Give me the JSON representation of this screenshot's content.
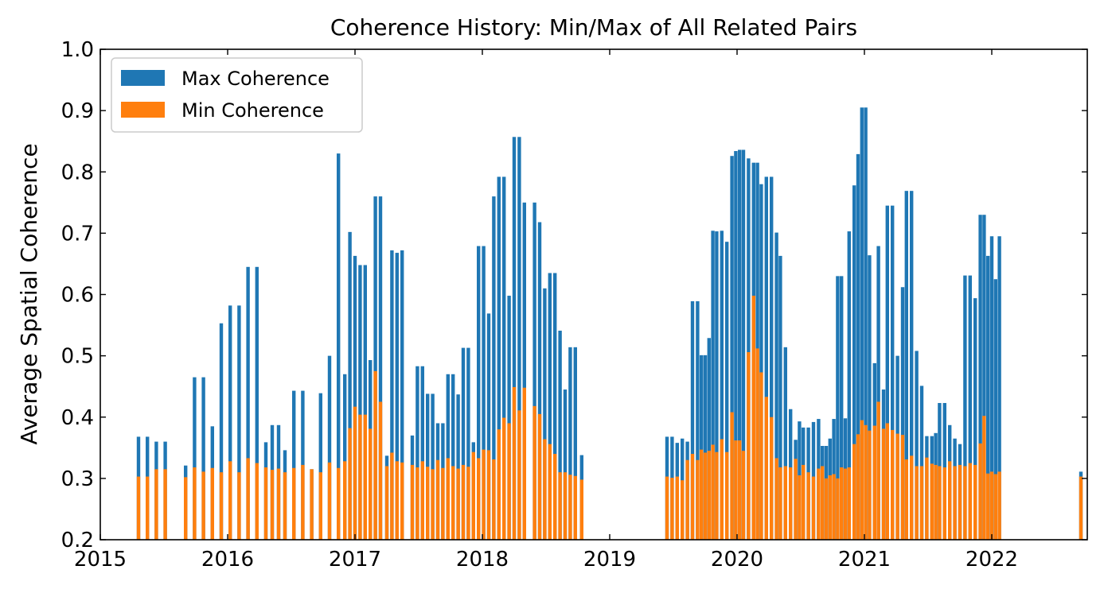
{
  "chart_data": {
    "type": "bar",
    "title": "Coherence History: Min/Max of All Related Pairs",
    "xlabel": "",
    "ylabel": "Average Spatial Coherence",
    "ylim": [
      0.2,
      1.0
    ],
    "xlim": [
      2015.0,
      2022.75
    ],
    "yticks": [
      "0.2",
      "0.3",
      "0.4",
      "0.5",
      "0.6",
      "0.7",
      "0.8",
      "0.9",
      "1.0"
    ],
    "xticks": [
      "2015",
      "2016",
      "2017",
      "2018",
      "2019",
      "2020",
      "2021",
      "2022"
    ],
    "legend_position": "upper-left",
    "legend": [
      {
        "name": "Max Coherence",
        "color": "#1f77b4"
      },
      {
        "name": "Min Coherence",
        "color": "#ff7f0e"
      }
    ],
    "series": [
      {
        "name": "Max Coherence",
        "color": "#1f77b4",
        "points": [
          [
            2015.3,
            0.368
          ],
          [
            2015.37,
            0.368
          ],
          [
            2015.44,
            0.36
          ],
          [
            2015.51,
            0.36
          ],
          [
            2015.67,
            0.321
          ],
          [
            2015.74,
            0.465
          ],
          [
            2015.81,
            0.465
          ],
          [
            2015.88,
            0.385
          ],
          [
            2015.95,
            0.553
          ],
          [
            2016.02,
            0.582
          ],
          [
            2016.09,
            0.582
          ],
          [
            2016.16,
            0.645
          ],
          [
            2016.23,
            0.645
          ],
          [
            2016.3,
            0.359
          ],
          [
            2016.35,
            0.387
          ],
          [
            2016.4,
            0.387
          ],
          [
            2016.45,
            0.346
          ],
          [
            2016.52,
            0.443
          ],
          [
            2016.59,
            0.443
          ],
          [
            2016.66,
            0.315
          ],
          [
            2016.73,
            0.439
          ],
          [
            2016.8,
            0.5
          ],
          [
            2016.87,
            0.83
          ],
          [
            2016.92,
            0.47
          ],
          [
            2016.96,
            0.702
          ],
          [
            2017.0,
            0.663
          ],
          [
            2017.04,
            0.648
          ],
          [
            2017.08,
            0.648
          ],
          [
            2017.12,
            0.493
          ],
          [
            2017.16,
            0.76
          ],
          [
            2017.2,
            0.76
          ],
          [
            2017.25,
            0.337
          ],
          [
            2017.29,
            0.672
          ],
          [
            2017.33,
            0.668
          ],
          [
            2017.37,
            0.672
          ],
          [
            2017.45,
            0.37
          ],
          [
            2017.49,
            0.483
          ],
          [
            2017.53,
            0.483
          ],
          [
            2017.57,
            0.438
          ],
          [
            2017.61,
            0.438
          ],
          [
            2017.65,
            0.39
          ],
          [
            2017.69,
            0.39
          ],
          [
            2017.73,
            0.47
          ],
          [
            2017.77,
            0.47
          ],
          [
            2017.81,
            0.437
          ],
          [
            2017.85,
            0.513
          ],
          [
            2017.89,
            0.513
          ],
          [
            2017.93,
            0.359
          ],
          [
            2017.97,
            0.679
          ],
          [
            2018.01,
            0.679
          ],
          [
            2018.05,
            0.569
          ],
          [
            2018.09,
            0.76
          ],
          [
            2018.13,
            0.792
          ],
          [
            2018.17,
            0.792
          ],
          [
            2018.21,
            0.598
          ],
          [
            2018.25,
            0.857
          ],
          [
            2018.29,
            0.857
          ],
          [
            2018.33,
            0.75
          ],
          [
            2018.41,
            0.75
          ],
          [
            2018.45,
            0.718
          ],
          [
            2018.49,
            0.61
          ],
          [
            2018.53,
            0.635
          ],
          [
            2018.57,
            0.635
          ],
          [
            2018.61,
            0.541
          ],
          [
            2018.65,
            0.445
          ],
          [
            2018.69,
            0.514
          ],
          [
            2018.73,
            0.514
          ],
          [
            2018.78,
            0.338
          ],
          [
            2019.45,
            0.368
          ],
          [
            2019.49,
            0.368
          ],
          [
            2019.53,
            0.358
          ],
          [
            2019.57,
            0.365
          ],
          [
            2019.61,
            0.36
          ],
          [
            2019.65,
            0.589
          ],
          [
            2019.69,
            0.589
          ],
          [
            2019.72,
            0.501
          ],
          [
            2019.75,
            0.501
          ],
          [
            2019.78,
            0.529
          ],
          [
            2019.81,
            0.704
          ],
          [
            2019.84,
            0.703
          ],
          [
            2019.88,
            0.704
          ],
          [
            2019.92,
            0.686
          ],
          [
            2019.96,
            0.826
          ],
          [
            2019.99,
            0.834
          ],
          [
            2020.02,
            0.836
          ],
          [
            2020.05,
            0.836
          ],
          [
            2020.09,
            0.822
          ],
          [
            2020.13,
            0.815
          ],
          [
            2020.16,
            0.815
          ],
          [
            2020.19,
            0.78
          ],
          [
            2020.23,
            0.792
          ],
          [
            2020.27,
            0.792
          ],
          [
            2020.31,
            0.701
          ],
          [
            2020.34,
            0.663
          ],
          [
            2020.38,
            0.514
          ],
          [
            2020.42,
            0.413
          ],
          [
            2020.46,
            0.363
          ],
          [
            2020.49,
            0.393
          ],
          [
            2020.52,
            0.383
          ],
          [
            2020.56,
            0.383
          ],
          [
            2020.6,
            0.392
          ],
          [
            2020.64,
            0.397
          ],
          [
            2020.67,
            0.353
          ],
          [
            2020.7,
            0.353
          ],
          [
            2020.73,
            0.365
          ],
          [
            2020.76,
            0.397
          ],
          [
            2020.79,
            0.63
          ],
          [
            2020.82,
            0.63
          ],
          [
            2020.85,
            0.398
          ],
          [
            2020.88,
            0.703
          ],
          [
            2020.92,
            0.778
          ],
          [
            2020.95,
            0.829
          ],
          [
            2020.98,
            0.905
          ],
          [
            2021.01,
            0.905
          ],
          [
            2021.04,
            0.664
          ],
          [
            2021.08,
            0.488
          ],
          [
            2021.11,
            0.679
          ],
          [
            2021.15,
            0.445
          ],
          [
            2021.18,
            0.745
          ],
          [
            2021.22,
            0.745
          ],
          [
            2021.26,
            0.5
          ],
          [
            2021.3,
            0.612
          ],
          [
            2021.33,
            0.769
          ],
          [
            2021.37,
            0.769
          ],
          [
            2021.41,
            0.508
          ],
          [
            2021.45,
            0.451
          ],
          [
            2021.49,
            0.369
          ],
          [
            2021.53,
            0.369
          ],
          [
            2021.56,
            0.374
          ],
          [
            2021.59,
            0.423
          ],
          [
            2021.63,
            0.423
          ],
          [
            2021.67,
            0.387
          ],
          [
            2021.71,
            0.365
          ],
          [
            2021.75,
            0.356
          ],
          [
            2021.79,
            0.631
          ],
          [
            2021.83,
            0.631
          ],
          [
            2021.87,
            0.594
          ],
          [
            2021.91,
            0.73
          ],
          [
            2021.94,
            0.73
          ],
          [
            2021.97,
            0.663
          ],
          [
            2022.0,
            0.695
          ],
          [
            2022.03,
            0.625
          ],
          [
            2022.06,
            0.695
          ],
          [
            2022.7,
            0.311
          ]
        ]
      },
      {
        "name": "Min Coherence",
        "color": "#ff7f0e",
        "points": [
          [
            2015.3,
            0.303
          ],
          [
            2015.37,
            0.303
          ],
          [
            2015.44,
            0.315
          ],
          [
            2015.51,
            0.315
          ],
          [
            2015.67,
            0.302
          ],
          [
            2015.74,
            0.318
          ],
          [
            2015.81,
            0.311
          ],
          [
            2015.88,
            0.317
          ],
          [
            2015.95,
            0.31
          ],
          [
            2016.02,
            0.328
          ],
          [
            2016.09,
            0.31
          ],
          [
            2016.16,
            0.333
          ],
          [
            2016.23,
            0.325
          ],
          [
            2016.3,
            0.318
          ],
          [
            2016.35,
            0.314
          ],
          [
            2016.4,
            0.316
          ],
          [
            2016.45,
            0.31
          ],
          [
            2016.52,
            0.317
          ],
          [
            2016.59,
            0.322
          ],
          [
            2016.66,
            0.315
          ],
          [
            2016.73,
            0.31
          ],
          [
            2016.8,
            0.326
          ],
          [
            2016.87,
            0.317
          ],
          [
            2016.92,
            0.328
          ],
          [
            2016.96,
            0.382
          ],
          [
            2017.0,
            0.417
          ],
          [
            2017.04,
            0.404
          ],
          [
            2017.08,
            0.404
          ],
          [
            2017.12,
            0.381
          ],
          [
            2017.16,
            0.475
          ],
          [
            2017.2,
            0.425
          ],
          [
            2017.25,
            0.32
          ],
          [
            2017.29,
            0.342
          ],
          [
            2017.33,
            0.328
          ],
          [
            2017.37,
            0.326
          ],
          [
            2017.45,
            0.322
          ],
          [
            2017.49,
            0.318
          ],
          [
            2017.53,
            0.328
          ],
          [
            2017.57,
            0.319
          ],
          [
            2017.61,
            0.315
          ],
          [
            2017.65,
            0.33
          ],
          [
            2017.69,
            0.317
          ],
          [
            2017.73,
            0.333
          ],
          [
            2017.77,
            0.32
          ],
          [
            2017.81,
            0.316
          ],
          [
            2017.85,
            0.322
          ],
          [
            2017.89,
            0.319
          ],
          [
            2017.93,
            0.343
          ],
          [
            2017.97,
            0.333
          ],
          [
            2018.01,
            0.347
          ],
          [
            2018.05,
            0.346
          ],
          [
            2018.09,
            0.331
          ],
          [
            2018.13,
            0.38
          ],
          [
            2018.17,
            0.399
          ],
          [
            2018.21,
            0.39
          ],
          [
            2018.25,
            0.449
          ],
          [
            2018.29,
            0.411
          ],
          [
            2018.33,
            0.448
          ],
          [
            2018.41,
            0.418
          ],
          [
            2018.45,
            0.405
          ],
          [
            2018.49,
            0.364
          ],
          [
            2018.53,
            0.356
          ],
          [
            2018.57,
            0.34
          ],
          [
            2018.61,
            0.31
          ],
          [
            2018.65,
            0.31
          ],
          [
            2018.69,
            0.306
          ],
          [
            2018.73,
            0.304
          ],
          [
            2018.78,
            0.298
          ],
          [
            2019.45,
            0.303
          ],
          [
            2019.49,
            0.301
          ],
          [
            2019.53,
            0.303
          ],
          [
            2019.57,
            0.297
          ],
          [
            2019.61,
            0.33
          ],
          [
            2019.65,
            0.34
          ],
          [
            2019.69,
            0.33
          ],
          [
            2019.72,
            0.347
          ],
          [
            2019.75,
            0.342
          ],
          [
            2019.78,
            0.345
          ],
          [
            2019.81,
            0.355
          ],
          [
            2019.84,
            0.343
          ],
          [
            2019.88,
            0.364
          ],
          [
            2019.92,
            0.343
          ],
          [
            2019.96,
            0.408
          ],
          [
            2019.99,
            0.362
          ],
          [
            2020.02,
            0.362
          ],
          [
            2020.05,
            0.345
          ],
          [
            2020.09,
            0.506
          ],
          [
            2020.13,
            0.598
          ],
          [
            2020.16,
            0.512
          ],
          [
            2020.19,
            0.473
          ],
          [
            2020.23,
            0.433
          ],
          [
            2020.27,
            0.4
          ],
          [
            2020.31,
            0.333
          ],
          [
            2020.34,
            0.318
          ],
          [
            2020.38,
            0.32
          ],
          [
            2020.42,
            0.318
          ],
          [
            2020.46,
            0.332
          ],
          [
            2020.49,
            0.305
          ],
          [
            2020.52,
            0.322
          ],
          [
            2020.56,
            0.31
          ],
          [
            2020.6,
            0.303
          ],
          [
            2020.64,
            0.316
          ],
          [
            2020.67,
            0.32
          ],
          [
            2020.7,
            0.3
          ],
          [
            2020.73,
            0.305
          ],
          [
            2020.76,
            0.307
          ],
          [
            2020.79,
            0.3
          ],
          [
            2020.82,
            0.318
          ],
          [
            2020.85,
            0.316
          ],
          [
            2020.88,
            0.318
          ],
          [
            2020.92,
            0.356
          ],
          [
            2020.95,
            0.372
          ],
          [
            2020.98,
            0.395
          ],
          [
            2021.01,
            0.387
          ],
          [
            2021.04,
            0.378
          ],
          [
            2021.08,
            0.386
          ],
          [
            2021.11,
            0.425
          ],
          [
            2021.15,
            0.381
          ],
          [
            2021.18,
            0.39
          ],
          [
            2021.22,
            0.379
          ],
          [
            2021.26,
            0.373
          ],
          [
            2021.3,
            0.371
          ],
          [
            2021.33,
            0.331
          ],
          [
            2021.37,
            0.337
          ],
          [
            2021.41,
            0.32
          ],
          [
            2021.45,
            0.32
          ],
          [
            2021.49,
            0.334
          ],
          [
            2021.53,
            0.324
          ],
          [
            2021.56,
            0.322
          ],
          [
            2021.59,
            0.32
          ],
          [
            2021.63,
            0.318
          ],
          [
            2021.67,
            0.328
          ],
          [
            2021.71,
            0.32
          ],
          [
            2021.75,
            0.322
          ],
          [
            2021.79,
            0.32
          ],
          [
            2021.83,
            0.325
          ],
          [
            2021.87,
            0.322
          ],
          [
            2021.91,
            0.357
          ],
          [
            2021.94,
            0.402
          ],
          [
            2021.97,
            0.308
          ],
          [
            2022.0,
            0.311
          ],
          [
            2022.03,
            0.307
          ],
          [
            2022.06,
            0.311
          ],
          [
            2022.7,
            0.303
          ]
        ]
      }
    ]
  }
}
